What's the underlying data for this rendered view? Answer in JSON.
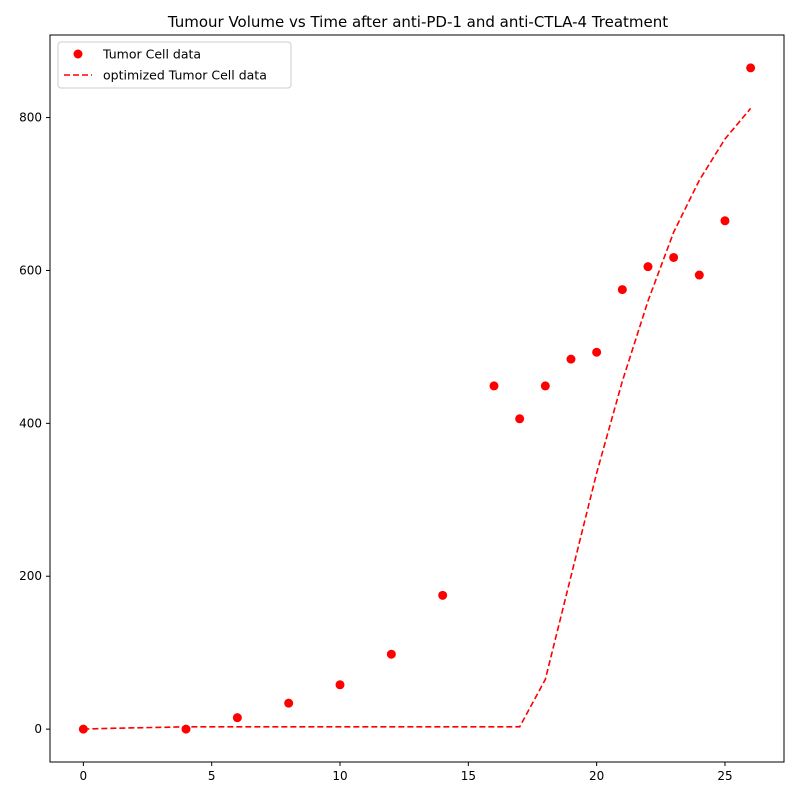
{
  "chart_data": {
    "type": "scatter",
    "title": "Tumour Volume vs Time after anti-PD-1 and anti-CTLA-4 Treatment",
    "xlabel": "",
    "ylabel": "",
    "xlim": [
      -1.3,
      27.3
    ],
    "ylim": [
      -43,
      908
    ],
    "xticks": [
      0,
      5,
      10,
      15,
      20,
      25
    ],
    "yticks": [
      0,
      200,
      400,
      600,
      800
    ],
    "grid": false,
    "legend_position": "top-left",
    "series": [
      {
        "name": "Tumor Cell data",
        "kind": "scatter",
        "color": "#ff0000",
        "x": [
          0,
          4,
          6,
          8,
          10,
          12,
          14,
          16,
          17,
          18,
          19,
          20,
          21,
          22,
          23,
          24,
          25,
          26
        ],
        "y": [
          0,
          0,
          15,
          34,
          58,
          98,
          175,
          449,
          406,
          449,
          484,
          493,
          575,
          605,
          617,
          594,
          665,
          865
        ]
      },
      {
        "name": "optimized Tumor Cell data",
        "kind": "line",
        "style": "dashed",
        "color": "#ff0000",
        "x": [
          0,
          1,
          4,
          5,
          6,
          8,
          10,
          12,
          14,
          16,
          17,
          18,
          19,
          20,
          21,
          22,
          23,
          24,
          25,
          26
        ],
        "y": [
          0,
          1,
          3,
          3,
          3,
          3,
          3,
          3,
          3,
          3,
          3,
          65,
          200,
          335,
          455,
          560,
          650,
          718,
          772,
          812
        ]
      }
    ]
  }
}
